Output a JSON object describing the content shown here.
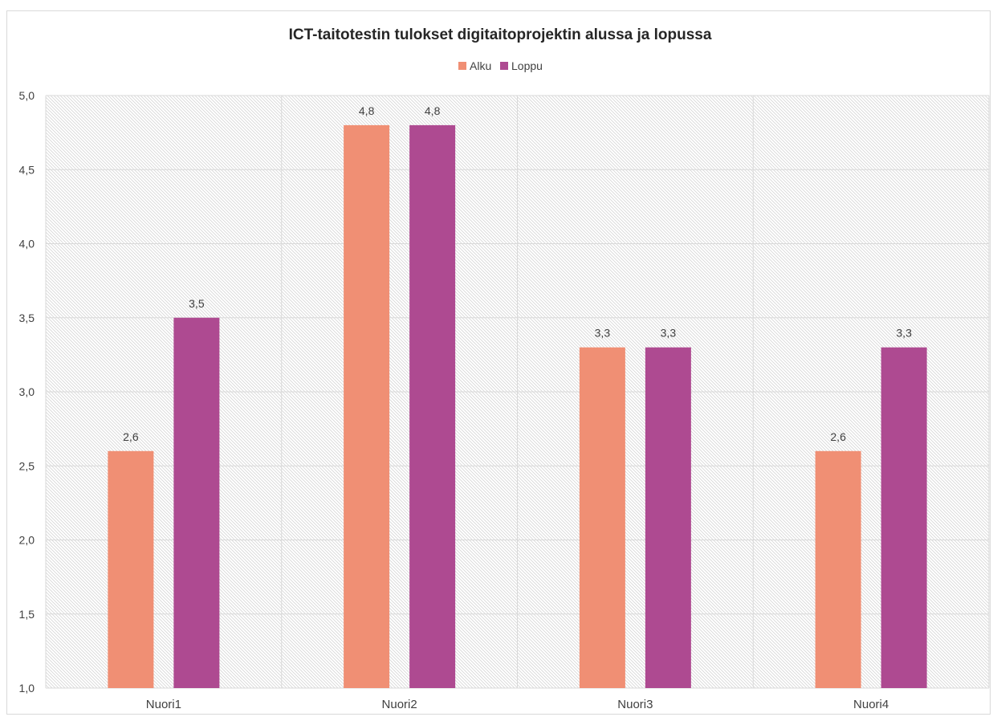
{
  "chart_data": {
    "type": "bar",
    "title": "ICT-taitotestin tulokset digitaitoprojektin alussa ja lopussa",
    "categories": [
      "Nuori1",
      "Nuori2",
      "Nuori3",
      "Nuori4"
    ],
    "series": [
      {
        "name": "Alku",
        "values": [
          2.6,
          4.8,
          3.3,
          2.6
        ],
        "color": "#f08f74"
      },
      {
        "name": "Loppu",
        "values": [
          3.5,
          4.8,
          3.3,
          3.3
        ],
        "color": "#ae4a91"
      }
    ],
    "xlabel": "",
    "ylabel": "",
    "ylim": [
      1.0,
      5.0
    ],
    "y_ticks": [
      "1,0",
      "1,5",
      "2,0",
      "2,5",
      "3,0",
      "3,5",
      "4,0",
      "4,5",
      "5,0"
    ],
    "value_labels": {
      "Alku": [
        "2,6",
        "4,8",
        "3,3",
        "2,6"
      ],
      "Loppu": [
        "3,5",
        "4,8",
        "3,3",
        "3,3"
      ]
    },
    "grid": true,
    "legend_position": "top",
    "plot_background": "hatched light gray"
  }
}
